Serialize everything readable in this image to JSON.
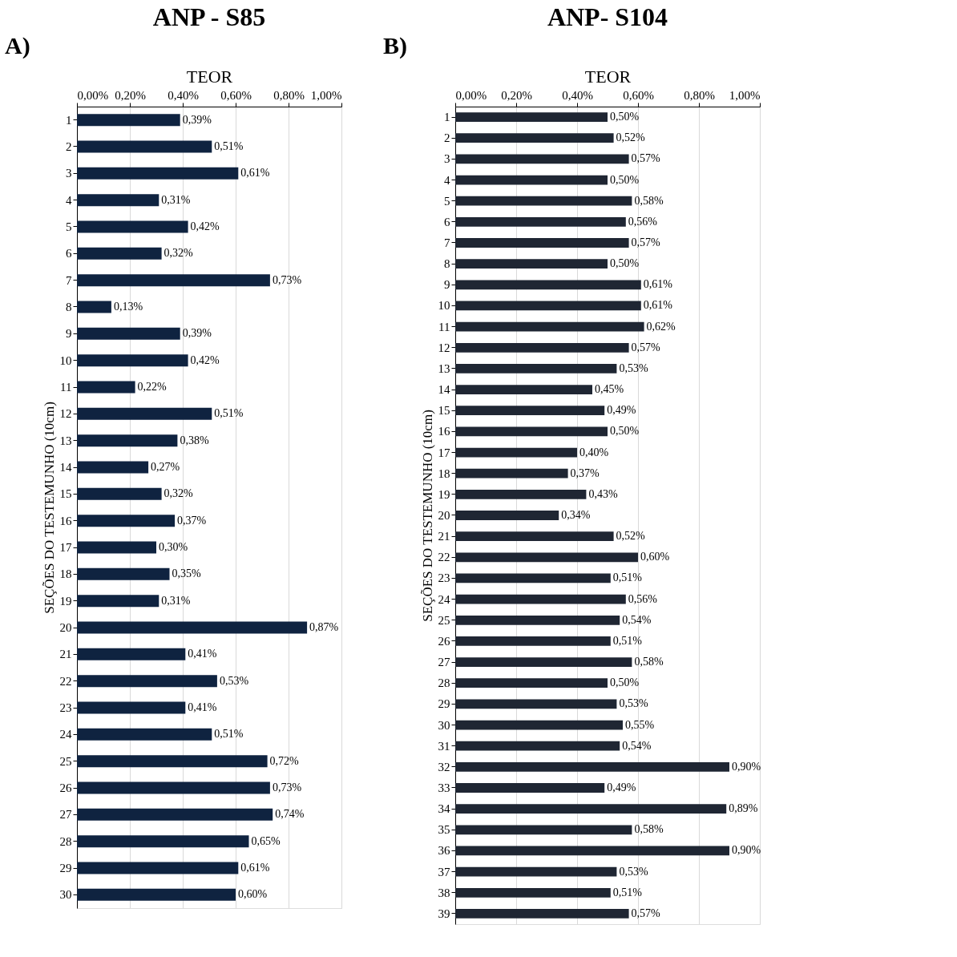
{
  "chart_data": [
    {
      "type": "bar",
      "orientation": "horizontal",
      "title": "ANP - S85",
      "xlabel": "TEOR",
      "ylabel": "SEÇÕES DO TESTEMUNHO (10cm)",
      "annotations": [
        "A)"
      ],
      "categories": [
        "1",
        "2",
        "3",
        "4",
        "5",
        "6",
        "7",
        "8",
        "9",
        "10",
        "11",
        "12",
        "13",
        "14",
        "15",
        "16",
        "17",
        "18",
        "19",
        "20",
        "21",
        "22",
        "23",
        "24",
        "25",
        "26",
        "27",
        "28",
        "29",
        "30"
      ],
      "series": [
        {
          "color": "#0f2340",
          "values": [
            0.39,
            0.51,
            0.61,
            0.31,
            0.42,
            0.32,
            0.73,
            0.13,
            0.39,
            0.42,
            0.22,
            0.51,
            0.38,
            0.27,
            0.32,
            0.37,
            0.3,
            0.35,
            0.31,
            0.87,
            0.41,
            0.53,
            0.41,
            0.51,
            0.72,
            0.73,
            0.74,
            0.65,
            0.61,
            0.6
          ],
          "value_labels": [
            "0,39%",
            "0,51%",
            "0,61%",
            "0,31%",
            "0,42%",
            "0,32%",
            "0,73%",
            "0,13%",
            "0,39%",
            "0,42%",
            "0,22%",
            "0,51%",
            "0,38%",
            "0,27%",
            "0,32%",
            "0,37%",
            "0,30%",
            "0,35%",
            "0,31%",
            "0,87%",
            "0,41%",
            "0,53%",
            "0,41%",
            "0,51%",
            "0,72%",
            "0,73%",
            "0,74%",
            "0,65%",
            "0,61%",
            "0,60%"
          ]
        }
      ],
      "xlim": [
        0,
        1
      ],
      "xticks": [
        {
          "value": 0,
          "label": "0,00%"
        },
        {
          "value": 0.2,
          "label": "0,20%"
        },
        {
          "value": 0.4,
          "label": "0,40%"
        },
        {
          "value": 0.6,
          "label": "0,60%"
        },
        {
          "value": 0.8,
          "label": "0,80%"
        },
        {
          "value": 1,
          "label": "1,00%"
        }
      ],
      "grid": "x"
    },
    {
      "type": "bar",
      "orientation": "horizontal",
      "title": "ANP- S104",
      "xlabel": "TEOR",
      "ylabel": "SEÇÕES DO TESTEMUNHO (10cm)",
      "annotations": [
        "B)"
      ],
      "categories": [
        "1",
        "2",
        "3",
        "4",
        "5",
        "6",
        "7",
        "8",
        "9",
        "10",
        "11",
        "12",
        "13",
        "14",
        "15",
        "16",
        "17",
        "18",
        "19",
        "20",
        "21",
        "22",
        "23",
        "24",
        "25",
        "26",
        "27",
        "28",
        "29",
        "30",
        "31",
        "32",
        "33",
        "34",
        "35",
        "36",
        "37",
        "38",
        "39"
      ],
      "series": [
        {
          "color": "#1f2633",
          "values": [
            0.5,
            0.52,
            0.57,
            0.5,
            0.58,
            0.56,
            0.57,
            0.5,
            0.61,
            0.61,
            0.62,
            0.57,
            0.53,
            0.45,
            0.49,
            0.5,
            0.4,
            0.37,
            0.43,
            0.34,
            0.52,
            0.6,
            0.51,
            0.56,
            0.54,
            0.51,
            0.58,
            0.5,
            0.53,
            0.55,
            0.54,
            0.9,
            0.49,
            0.89,
            0.58,
            0.9,
            0.53,
            0.51,
            0.57
          ],
          "value_labels": [
            "0,50%",
            "0,52%",
            "0,57%",
            "0,50%",
            "0,58%",
            "0,56%",
            "0,57%",
            "0,50%",
            "0,61%",
            "0,61%",
            "0,62%",
            "0,57%",
            "0,53%",
            "0,45%",
            "0,49%",
            "0,50%",
            "0,40%",
            "0,37%",
            "0,43%",
            "0,34%",
            "0,52%",
            "0,60%",
            "0,51%",
            "0,56%",
            "0,54%",
            "0,51%",
            "0,58%",
            "0,50%",
            "0,53%",
            "0,55%",
            "0,54%",
            "0,90%",
            "0,49%",
            "0,89%",
            "0,58%",
            "0,90%",
            "0,53%",
            "0,51%",
            "0,57%"
          ]
        }
      ],
      "xlim": [
        0,
        1
      ],
      "xticks": [
        {
          "value": 0,
          "label": "0,00%"
        },
        {
          "value": 0.2,
          "label": "0,20%"
        },
        {
          "value": 0.4,
          "label": "0,40%"
        },
        {
          "value": 0.6,
          "label": "0,60%"
        },
        {
          "value": 0.8,
          "label": "0,80%"
        },
        {
          "value": 1,
          "label": "1,00%"
        }
      ],
      "grid": "x"
    }
  ]
}
